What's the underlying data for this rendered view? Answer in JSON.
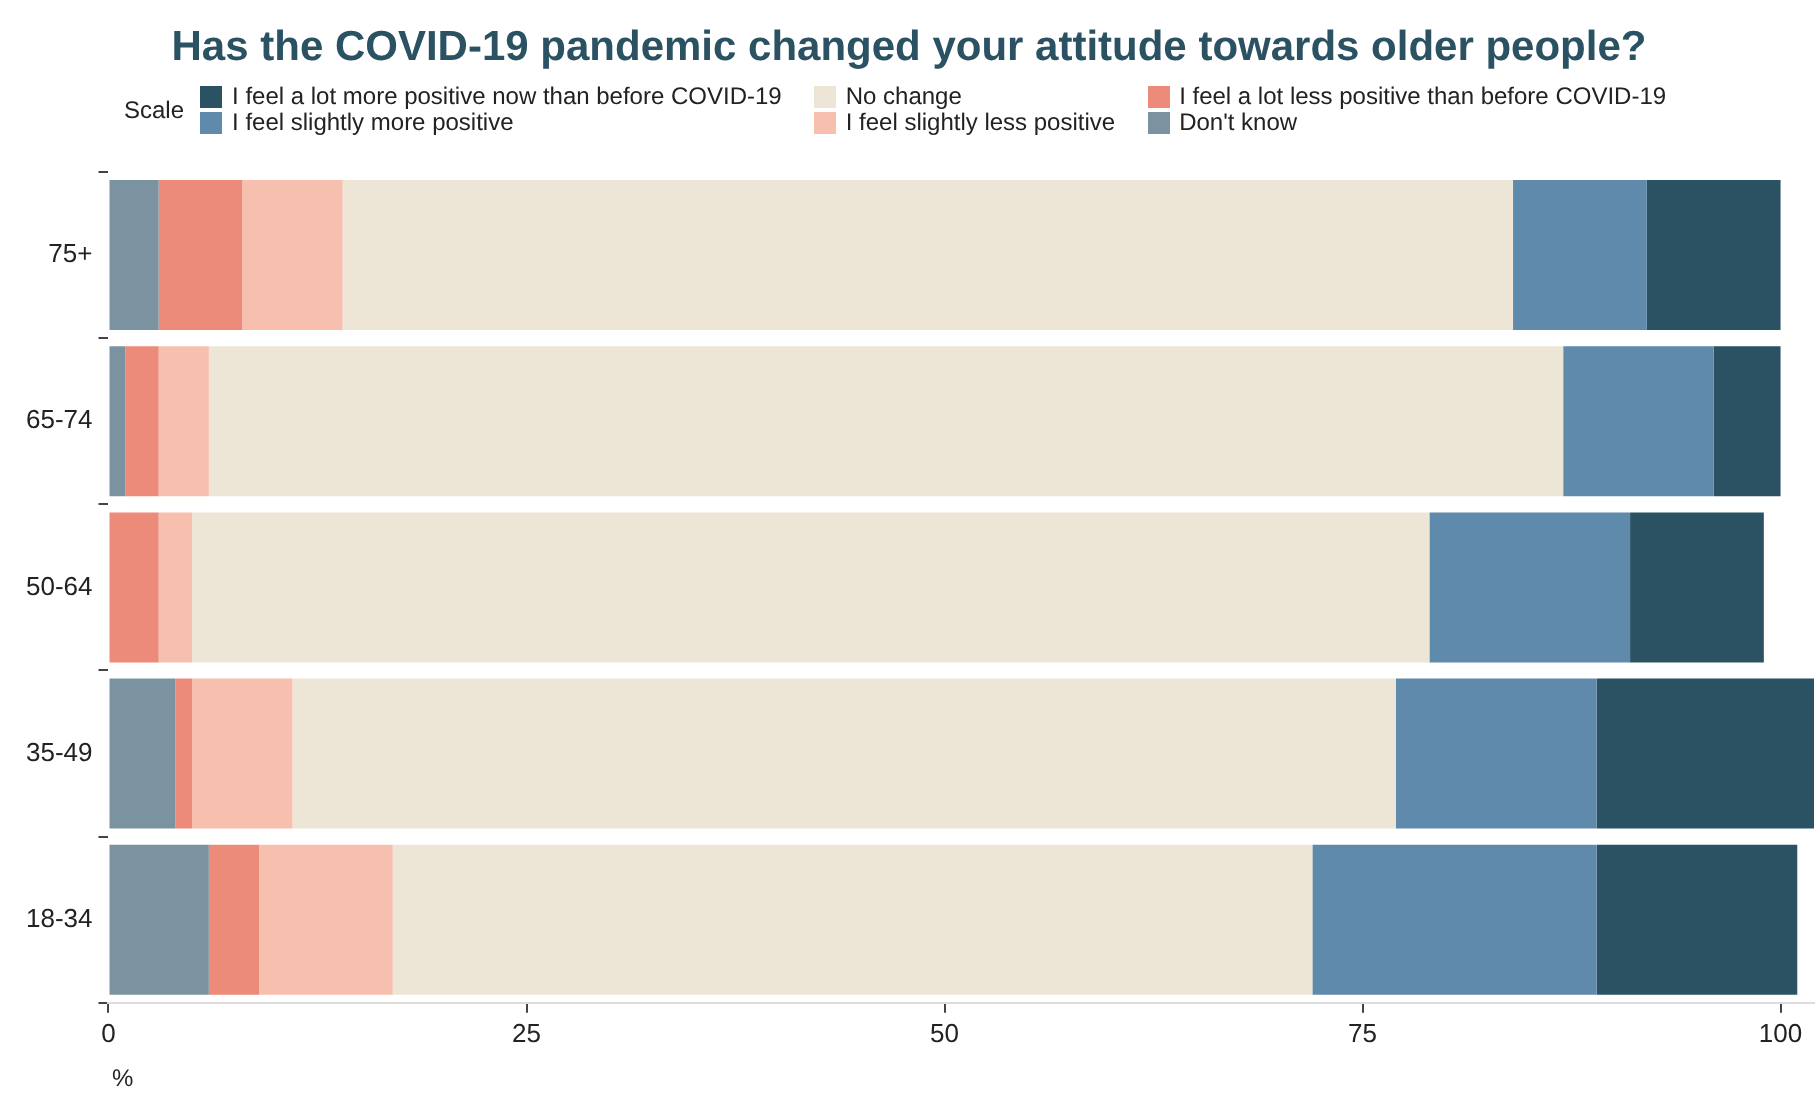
{
  "chart_data": {
    "type": "bar",
    "orientation": "horizontal",
    "stacked": true,
    "title": "Has the COVID-19 pandemic changed your attitude towards older people?",
    "legend_title": "Scale",
    "xlabel": "%",
    "legend": "top",
    "grid": false,
    "categories": [
      "75+",
      "65-74",
      "50-64",
      "35-49",
      "18-34"
    ],
    "xlim": [
      0,
      102
    ],
    "xticks": [
      0,
      25,
      50,
      75,
      100
    ],
    "series": [
      {
        "name": "Don't know",
        "color": "#7b93a0",
        "values": [
          3,
          1,
          0,
          4,
          6
        ]
      },
      {
        "name": "I feel a lot less positive than before COVID-19",
        "color": "#ec8b7a",
        "values": [
          5,
          2,
          3,
          1,
          3
        ]
      },
      {
        "name": "I feel slightly less positive",
        "color": "#f7bfad",
        "values": [
          6,
          3,
          2,
          6,
          8
        ]
      },
      {
        "name": "No change",
        "color": "#ede6d6",
        "values": [
          70,
          81,
          74,
          66,
          55
        ]
      },
      {
        "name": "I feel slightly more positive",
        "color": "#5f8aab",
        "values": [
          8,
          9,
          12,
          12,
          17
        ]
      },
      {
        "name": "I feel a lot more positive now than before COVID-19",
        "color": "#2b5263",
        "values": [
          8,
          4,
          8,
          13,
          12
        ]
      }
    ]
  }
}
